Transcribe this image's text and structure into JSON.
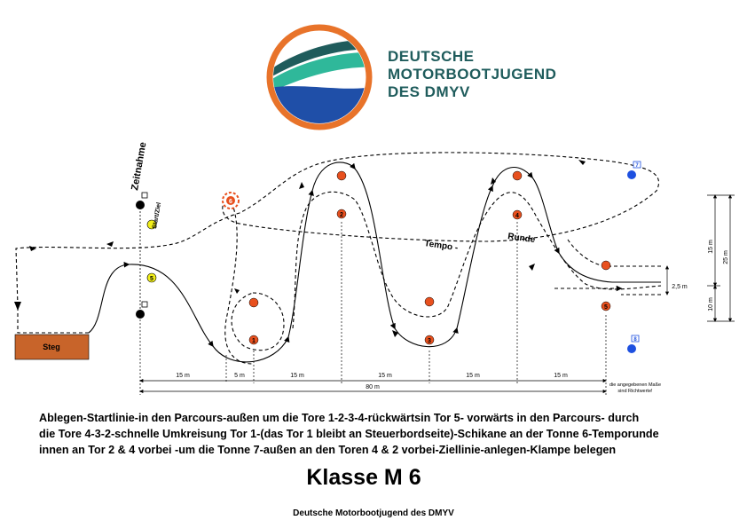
{
  "logo": {
    "lines": [
      "DEUTSCHE",
      "MOTORBOOTJUGEND",
      "DES DMYV"
    ],
    "colors": {
      "ring": "#e8732a",
      "wave_dark": "#1f5c5c",
      "wave_green": "#2fb89a",
      "water": "#1f4fa8"
    }
  },
  "diagram": {
    "zeitnahme": "Zeitnahme",
    "start_ziel": "Start/Ziel",
    "steg": "Steg",
    "tempo": "Tempo -",
    "runde": "Runde",
    "gates": [
      "1",
      "2",
      "3",
      "4",
      "5"
    ],
    "tonnen": [
      "6",
      "7",
      "8"
    ],
    "start_buoy": "5",
    "dims": {
      "seg1": "15 m",
      "seg2": "5 m",
      "seg3": "15 m",
      "seg4": "15 m",
      "seg5": "15 m",
      "seg6": "15 m",
      "total": "80 m",
      "v15": "15 m",
      "v25": "25 m",
      "v10": "10 m",
      "v25b": "2,5 m"
    },
    "note_line1": "die angegebenen Maße",
    "note_line2": "sind Richtwerte!",
    "colors": {
      "gate": "#e8501e",
      "tonne_blue": "#1e50e0",
      "start_yellow": "#f2ef1a",
      "steg": "#c8642a"
    }
  },
  "description": {
    "line1": "Ablegen-Startlinie-in den Parcours-außen um die Tore 1-2-3-4-rückwärtsin Tor 5- vorwärts in den Parcours- durch",
    "line2": "die Tore 4-3-2-schnelle Umkreisung Tor 1-(das Tor 1 bleibt an Steuerbordseite)-Schikane an der Tonne 6-Temporunde",
    "line3": "innen an Tor 2 & 4 vorbei -um die Tonne 7-außen an den Toren 4 & 2 vorbei-Ziellinie-anlegen-Klampe belegen"
  },
  "title": "Klasse M 6",
  "footer": "Deutsche Motorbootjugend des DMYV"
}
